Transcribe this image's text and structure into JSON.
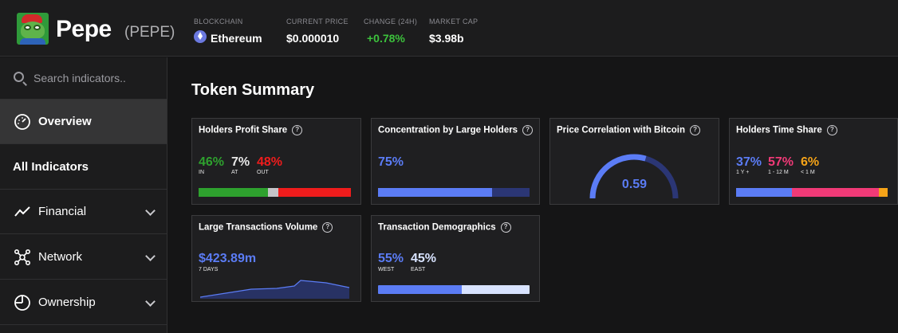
{
  "header": {
    "title": "Pepe",
    "ticker": "(PEPE)",
    "blockchain_label": "BLOCKCHAIN",
    "blockchain_value": "Ethereum",
    "price_label": "CURRENT PRICE",
    "price_value": "$0.000010",
    "change_label": "CHANGE (24H)",
    "change_value": "+0.78%",
    "mcap_label": "MARKET CAP",
    "mcap_value": "$3.98b"
  },
  "sidebar": {
    "search_placeholder": "Search indicators..",
    "items": [
      {
        "label": "Overview",
        "icon": "gauge-icon",
        "active": true
      },
      {
        "label": "All Indicators"
      },
      {
        "label": "Financial",
        "icon": "trend-line-icon"
      },
      {
        "label": "Network",
        "icon": "network-icon"
      },
      {
        "label": "Ownership",
        "icon": "pie-icon"
      }
    ]
  },
  "main": {
    "section_title": "Token Summary",
    "cards": {
      "holders_profit": {
        "title": "Holders Profit Share",
        "in_pct": "46%",
        "at_pct": "7%",
        "out_pct": "48%",
        "in_label": "IN",
        "at_label": "AT",
        "out_label": "OUT",
        "shares": [
          46,
          7,
          48
        ]
      },
      "concentration": {
        "title": "Concentration by Large Holders",
        "pct": "75%",
        "share": 75
      },
      "correlation": {
        "title": "Price Correlation with Bitcoin",
        "value": "0.59",
        "level": 0.59
      },
      "time_share": {
        "title": "Holders Time Share",
        "a_pct": "37%",
        "b_pct": "57%",
        "c_pct": "6%",
        "a_label": "1 Y +",
        "b_label": "1 - 12 M",
        "c_label": "< 1 M",
        "shares": [
          37,
          57,
          6
        ]
      },
      "large_tx": {
        "title": "Large Transactions Volume",
        "value": "$423.89m",
        "period": "7 DAYS"
      },
      "demographics": {
        "title": "Transaction Demographics",
        "west_pct": "55%",
        "east_pct": "45%",
        "west_label": "WEST",
        "east_label": "EAST",
        "shares": [
          55,
          45
        ]
      }
    }
  },
  "colors": {
    "green": "#2ea12e",
    "gray": "#c4c4c8",
    "red": "#ef1c1c",
    "blue": "#5b7cf5",
    "navy": "#2b3675",
    "pink": "#f03a77",
    "orange": "#f5a318",
    "pale": "#d8e3ff",
    "chart": "#5b7cf5"
  }
}
